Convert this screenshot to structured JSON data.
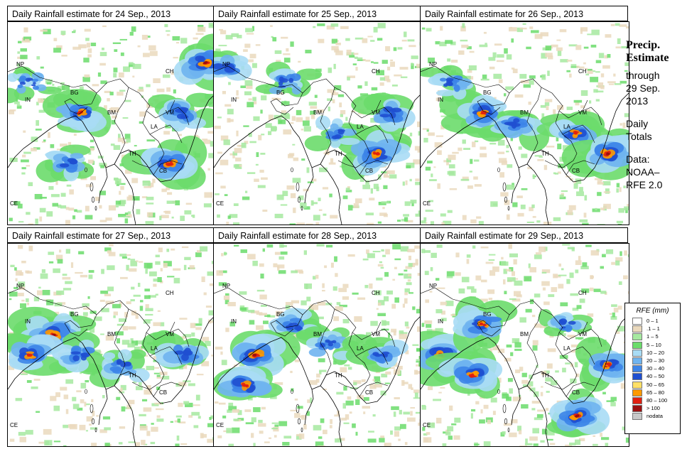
{
  "panels": [
    {
      "title": "Daily Rainfall estimate for  24 Sep., 2013",
      "seed": 24,
      "hotspots": [
        [
          0.95,
          0.2,
          1.0
        ],
        [
          0.85,
          0.45,
          0.7
        ],
        [
          0.35,
          0.45,
          0.8
        ],
        [
          0.78,
          0.7,
          0.9
        ],
        [
          0.3,
          0.7,
          0.6
        ],
        [
          0.1,
          0.3,
          0.4
        ]
      ]
    },
    {
      "title": "Daily Rainfall estimate for  25 Sep., 2013",
      "seed": 25,
      "hotspots": [
        [
          0.05,
          0.22,
          0.7
        ],
        [
          0.78,
          0.65,
          0.9
        ],
        [
          0.85,
          0.45,
          0.7
        ],
        [
          0.35,
          0.3,
          0.5
        ],
        [
          0.6,
          0.55,
          0.5
        ]
      ]
    },
    {
      "title": "Daily Rainfall estimate for  26 Sep., 2013",
      "seed": 26,
      "hotspots": [
        [
          0.3,
          0.45,
          0.9
        ],
        [
          0.45,
          0.5,
          0.7
        ],
        [
          0.75,
          0.55,
          0.8
        ],
        [
          0.9,
          0.65,
          1.0
        ],
        [
          0.15,
          0.3,
          0.5
        ]
      ]
    },
    {
      "title": "Daily Rainfall estimate for  27 Sep., 2013",
      "seed": 27,
      "hotspots": [
        [
          0.22,
          0.45,
          1.0
        ],
        [
          0.1,
          0.55,
          0.8
        ],
        [
          0.35,
          0.55,
          0.6
        ],
        [
          0.85,
          0.55,
          0.7
        ],
        [
          0.55,
          0.6,
          0.5
        ]
      ]
    },
    {
      "title": "Daily Rainfall estimate for  28 Sep., 2013",
      "seed": 28,
      "hotspots": [
        [
          0.2,
          0.55,
          1.0
        ],
        [
          0.15,
          0.7,
          0.9
        ],
        [
          0.38,
          0.4,
          0.6
        ],
        [
          0.55,
          0.5,
          0.5
        ],
        [
          0.8,
          0.55,
          0.6
        ]
      ]
    },
    {
      "title": "Daily Rainfall estimate for  29 Sep., 2013",
      "seed": 29,
      "hotspots": [
        [
          0.1,
          0.55,
          1.0
        ],
        [
          0.25,
          0.65,
          0.9
        ],
        [
          0.3,
          0.4,
          0.8
        ],
        [
          0.75,
          0.85,
          1.0
        ],
        [
          0.9,
          0.6,
          0.8
        ],
        [
          0.7,
          0.4,
          0.5
        ]
      ]
    }
  ],
  "country_labels": [
    "NP",
    "CH",
    "IN",
    "BG",
    "BM",
    "VM",
    "LA",
    "TH",
    "CB",
    "CE"
  ],
  "side": {
    "title_line1": "Precip.",
    "title_line2": "Estimate",
    "through": "through",
    "date_line1": "29 Sep.",
    "date_line2": "2013",
    "daily1": "Daily",
    "daily2": "Totals",
    "data1": "Data:",
    "data2": "NOAA–",
    "data3": "RFE 2.0"
  },
  "legend": {
    "title": "RFE (mm)",
    "items": [
      {
        "label": "0 – 1",
        "color": "#ffffff"
      },
      {
        "label": ".1 – 1",
        "color": "#ead9bd"
      },
      {
        "label": "1 – 5",
        "color": "#a6e9a0"
      },
      {
        "label": "5 – 10",
        "color": "#6bdc6b"
      },
      {
        "label": "10 – 20",
        "color": "#a8dcf5"
      },
      {
        "label": "20 – 30",
        "color": "#6fb4ef"
      },
      {
        "label": "30 – 40",
        "color": "#3c84e8"
      },
      {
        "label": "40 – 50",
        "color": "#1f4fd0"
      },
      {
        "label": "50 – 65",
        "color": "#ffe066"
      },
      {
        "label": "65 – 80",
        "color": "#ff9a00"
      },
      {
        "label": "80 – 100",
        "color": "#e02010"
      },
      {
        "label": "> 100",
        "color": "#9a1010"
      },
      {
        "label": "nodata",
        "color": "#c8c8c8"
      }
    ]
  }
}
